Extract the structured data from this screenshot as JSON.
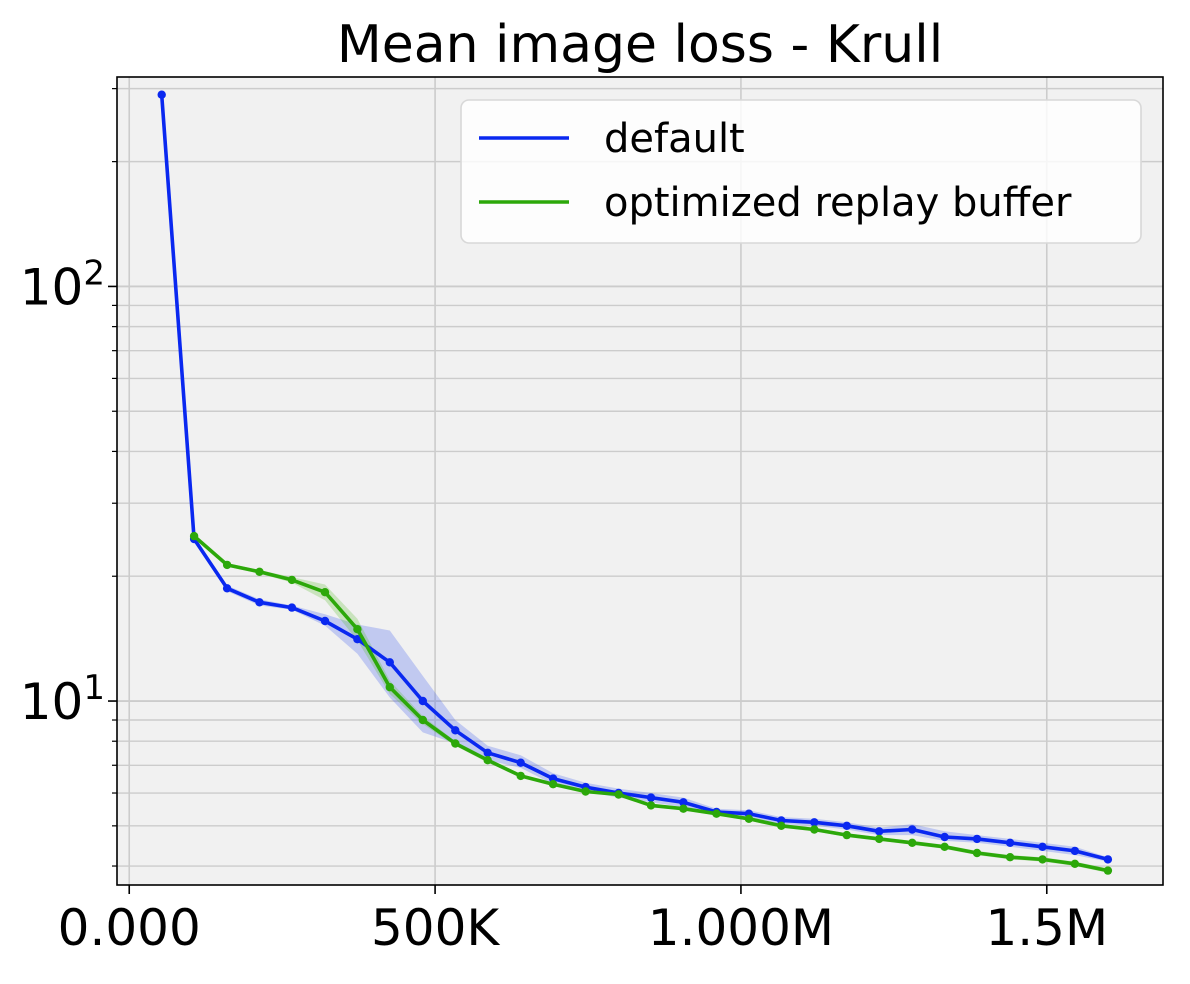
{
  "chart_data": {
    "type": "line",
    "title": "Mean image loss - Krull",
    "xlabel": "",
    "ylabel": "",
    "y_scale": "log",
    "xlim": [
      -20000,
      1690000
    ],
    "ylim": [
      3.6,
      320
    ],
    "grid": true,
    "legend_position": "top-right",
    "x_ticks": [
      {
        "value": 0,
        "label": "0.000"
      },
      {
        "value": 500000,
        "label": "500K"
      },
      {
        "value": 1000000,
        "label": "1.000M"
      },
      {
        "value": 1500000,
        "label": "1.5M"
      }
    ],
    "y_ticks": [
      {
        "value": 10,
        "base": "10",
        "exp": "1"
      },
      {
        "value": 100,
        "base": "10",
        "exp": "2"
      }
    ],
    "series": [
      {
        "name": "default",
        "color": "#0a28f0",
        "band_color": "#3355ee",
        "x": [
          53000,
          106000,
          160000,
          213000,
          266000,
          320000,
          373000,
          426000,
          480000,
          533000,
          586000,
          640000,
          693000,
          746000,
          800000,
          853000,
          906000,
          960000,
          1013000,
          1066000,
          1120000,
          1173000,
          1226000,
          1280000,
          1333000,
          1386000,
          1440000,
          1493000,
          1546000,
          1600000
        ],
        "y": [
          290,
          24.6,
          18.7,
          17.3,
          16.8,
          15.6,
          14.1,
          12.4,
          10.0,
          8.5,
          7.5,
          7.1,
          6.5,
          6.2,
          6.0,
          5.85,
          5.7,
          5.4,
          5.35,
          5.15,
          5.1,
          5.0,
          4.85,
          4.9,
          4.7,
          4.65,
          4.55,
          4.45,
          4.35,
          4.15
        ],
        "lower": [
          290,
          24.3,
          18.4,
          17.0,
          16.6,
          15.2,
          13.0,
          10.2,
          8.4,
          7.9,
          7.2,
          6.9,
          6.3,
          6.05,
          5.85,
          5.7,
          5.55,
          5.3,
          5.25,
          5.05,
          5.0,
          4.9,
          4.75,
          4.75,
          4.6,
          4.55,
          4.45,
          4.35,
          4.25,
          4.1
        ],
        "upper": [
          290,
          24.9,
          19.0,
          17.6,
          17.0,
          16.2,
          15.3,
          14.8,
          11.5,
          9.0,
          7.8,
          7.4,
          6.7,
          6.35,
          6.15,
          6.0,
          5.85,
          5.5,
          5.45,
          5.25,
          5.2,
          5.1,
          4.95,
          5.05,
          4.85,
          4.75,
          4.65,
          4.55,
          4.45,
          4.2
        ]
      },
      {
        "name": "optimized replay buffer",
        "color": "#2ca80a",
        "band_color": "#55bb22",
        "x": [
          106000,
          160000,
          213000,
          266000,
          320000,
          373000,
          426000,
          480000,
          533000,
          586000,
          640000,
          693000,
          746000,
          800000,
          853000,
          906000,
          960000,
          1013000,
          1066000,
          1120000,
          1173000,
          1226000,
          1280000,
          1333000,
          1386000,
          1440000,
          1493000,
          1546000,
          1600000
        ],
        "y": [
          25.0,
          21.3,
          20.5,
          19.6,
          18.3,
          14.9,
          10.8,
          9.0,
          7.9,
          7.2,
          6.6,
          6.3,
          6.05,
          5.95,
          5.6,
          5.5,
          5.35,
          5.2,
          5.0,
          4.9,
          4.75,
          4.65,
          4.55,
          4.45,
          4.3,
          4.2,
          4.15,
          4.05,
          3.9
        ],
        "lower": [
          24.8,
          21.1,
          20.3,
          19.3,
          17.5,
          14.0,
          10.4,
          8.8,
          7.8,
          7.1,
          6.55,
          6.25,
          6.0,
          5.9,
          5.55,
          5.45,
          5.3,
          5.15,
          4.95,
          4.85,
          4.7,
          4.6,
          4.5,
          4.4,
          4.25,
          4.15,
          4.1,
          4.0,
          3.85
        ],
        "upper": [
          25.2,
          21.5,
          20.7,
          19.9,
          19.1,
          15.8,
          11.2,
          9.2,
          8.0,
          7.3,
          6.65,
          6.35,
          6.1,
          6.0,
          5.65,
          5.55,
          5.4,
          5.25,
          5.05,
          4.95,
          4.8,
          4.7,
          4.6,
          4.5,
          4.35,
          4.25,
          4.2,
          4.1,
          3.95
        ]
      }
    ]
  }
}
